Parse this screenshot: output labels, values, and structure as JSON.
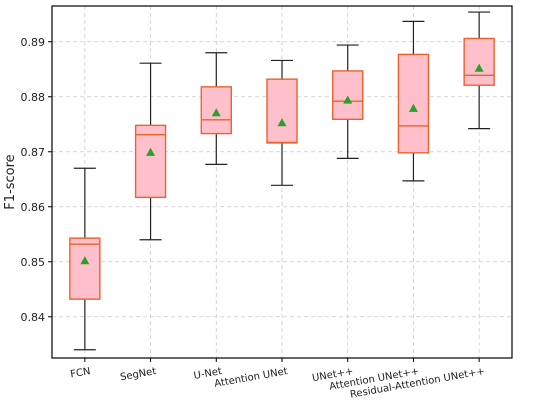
{
  "chart_data": {
    "type": "box",
    "title": "",
    "xlabel": "",
    "ylabel": "F1-score",
    "ylim": [
      0.8325,
      0.8965
    ],
    "yticks": [
      0.84,
      0.85,
      0.86,
      0.87,
      0.88,
      0.89
    ],
    "ytick_labels": [
      "0.84",
      "0.85",
      "0.86",
      "0.87",
      "0.88",
      "0.89"
    ],
    "grid": true,
    "legend": "none",
    "categories": [
      "FCN",
      "SegNet",
      "U-Net",
      "Attention UNet",
      "UNet++",
      "Attention UNet++",
      "Residual-Attention UNet++"
    ],
    "boxes": [
      {
        "whisker_low": 0.834,
        "q1": 0.8432,
        "median": 0.8532,
        "q3": 0.8543,
        "whisker_high": 0.867,
        "mean": 0.8502
      },
      {
        "whisker_low": 0.854,
        "q1": 0.8617,
        "median": 0.8731,
        "q3": 0.8748,
        "whisker_high": 0.8861,
        "mean": 0.8699
      },
      {
        "whisker_low": 0.8677,
        "q1": 0.8733,
        "median": 0.8758,
        "q3": 0.8818,
        "whisker_high": 0.888,
        "mean": 0.8771
      },
      {
        "whisker_low": 0.8639,
        "q1": 0.8716,
        "median": 0.8717,
        "q3": 0.8832,
        "whisker_high": 0.8866,
        "mean": 0.8753
      },
      {
        "whisker_low": 0.8688,
        "q1": 0.8759,
        "median": 0.8792,
        "q3": 0.8847,
        "whisker_high": 0.8894,
        "mean": 0.8794
      },
      {
        "whisker_low": 0.8647,
        "q1": 0.8698,
        "median": 0.8747,
        "q3": 0.8877,
        "whisker_high": 0.8937,
        "mean": 0.8779
      },
      {
        "whisker_low": 0.8742,
        "q1": 0.8821,
        "median": 0.8839,
        "q3": 0.8906,
        "whisker_high": 0.8954,
        "mean": 0.8852
      }
    ],
    "colors": {
      "box_fill": "#ffc0cb",
      "box_edge": "#e8642c",
      "median_line": "#e8642c",
      "whisker": "#222222",
      "mean_marker": "#2ca02c",
      "grid": "#cccccc",
      "axis": "#000000"
    }
  }
}
